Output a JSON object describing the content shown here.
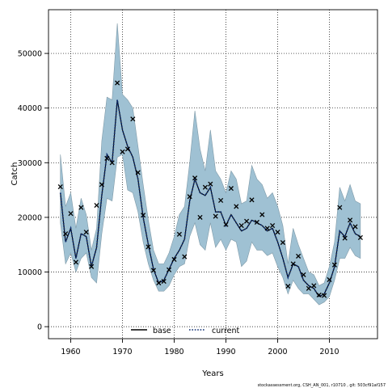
{
  "chart_data": {
    "type": "line",
    "xlabel": "Years",
    "ylabel": "Catch",
    "xlim": [
      1955.7,
      2019.3
    ],
    "ylim": [
      -2200,
      58000
    ],
    "x_ticks": [
      1960,
      1970,
      1980,
      1990,
      2000,
      2010
    ],
    "y_ticks": [
      0,
      10000,
      20000,
      30000,
      40000,
      50000
    ],
    "x_tick_labels": [
      "1960",
      "1970",
      "1980",
      "1990",
      "2000",
      "2010"
    ],
    "y_tick_labels": [
      "0",
      "10000",
      "20000",
      "30000",
      "40000",
      "50000"
    ],
    "grid": true,
    "legend_position": "bottom-center",
    "footer": "stockassessment.org, CSH_AN_001, r10710 , git: 503cf91af157",
    "colors": {
      "band": "#9fc1d3",
      "band_edge": "#7f9aa8",
      "current": "#0a2a70",
      "base": "#000000",
      "observed": "#000000"
    },
    "x": [
      1958,
      1959,
      1960,
      1961,
      1962,
      1963,
      1964,
      1965,
      1966,
      1967,
      1968,
      1969,
      1970,
      1971,
      1972,
      1973,
      1974,
      1975,
      1976,
      1977,
      1978,
      1979,
      1980,
      1981,
      1982,
      1983,
      1984,
      1985,
      1986,
      1987,
      1988,
      1989,
      1990,
      1991,
      1992,
      1993,
      1994,
      1995,
      1996,
      1997,
      1998,
      1999,
      2000,
      2001,
      2002,
      2003,
      2004,
      2005,
      2006,
      2007,
      2008,
      2009,
      2010,
      2011,
      2012,
      2013,
      2014,
      2015,
      2016
    ],
    "series": [
      {
        "name": "base",
        "style": "solid",
        "values": [
          24500,
          15500,
          18000,
          12500,
          17000,
          16500,
          11000,
          14500,
          24000,
          31500,
          30000,
          41500,
          36000,
          33000,
          31000,
          27000,
          20000,
          15000,
          10500,
          8000,
          8500,
          10500,
          12500,
          14000,
          16000,
          23000,
          27000,
          24500,
          24000,
          25500,
          21000,
          21000,
          18500,
          20500,
          19000,
          17500,
          18000,
          19500,
          19000,
          18500,
          17500,
          18000,
          15500,
          12500,
          9000,
          11500,
          11000,
          8500,
          7500,
          7000,
          5500,
          6000,
          8000,
          11000,
          17500,
          16500,
          19000,
          17000,
          16500
        ]
      },
      {
        "name": "current",
        "style": "dotted",
        "values": [
          24500,
          15500,
          18000,
          12500,
          17000,
          16500,
          11000,
          14500,
          24000,
          31500,
          30000,
          41500,
          36000,
          33000,
          31000,
          27000,
          20000,
          15000,
          10500,
          8000,
          8500,
          10500,
          12500,
          14000,
          16000,
          23000,
          27000,
          24500,
          24000,
          25500,
          21000,
          21000,
          18500,
          20500,
          19000,
          17500,
          18000,
          19500,
          19000,
          18500,
          17500,
          18000,
          15500,
          12500,
          9000,
          11500,
          11000,
          8500,
          7500,
          7000,
          5500,
          6000,
          8000,
          11000,
          17500,
          16500,
          19000,
          17000,
          16500
        ]
      }
    ],
    "confidence_band": {
      "upper": [
        31500,
        22000,
        24500,
        18000,
        23500,
        20500,
        14000,
        18000,
        34000,
        42000,
        41500,
        55500,
        42500,
        41500,
        40000,
        33000,
        26000,
        19500,
        14000,
        11500,
        11500,
        13500,
        16500,
        20500,
        22000,
        30000,
        39500,
        32500,
        28500,
        36000,
        28500,
        27000,
        24500,
        28500,
        27000,
        22500,
        23000,
        29500,
        27000,
        26000,
        23500,
        24500,
        22000,
        18500,
        11500,
        18000,
        15000,
        12500,
        10000,
        9500,
        7500,
        8000,
        11000,
        15500,
        25500,
        23000,
        26000,
        23000,
        22500
      ],
      "lower": [
        19000,
        11500,
        13500,
        10000,
        12500,
        13500,
        9000,
        8000,
        17000,
        23500,
        23000,
        31000,
        31500,
        25000,
        24500,
        21000,
        15500,
        11500,
        8500,
        6500,
        6500,
        7500,
        9500,
        11000,
        11500,
        16500,
        19000,
        15000,
        14000,
        19000,
        14500,
        16000,
        14000,
        16000,
        15500,
        11000,
        12000,
        15500,
        14000,
        14000,
        13000,
        13500,
        11000,
        9000,
        6000,
        8500,
        7000,
        6000,
        6000,
        5000,
        4000,
        4500,
        5500,
        8500,
        12500,
        12500,
        14500,
        13000,
        12500
      ]
    },
    "observed": {
      "name": "observed",
      "marker": "x",
      "values": [
        25600,
        17000,
        20700,
        11800,
        21800,
        17300,
        11000,
        22200,
        26000,
        30800,
        30000,
        44600,
        32000,
        32500,
        38000,
        28200,
        20400,
        14600,
        10300,
        8000,
        8300,
        10400,
        12300,
        16900,
        12800,
        23800,
        27200,
        20000,
        25500,
        26100,
        20200,
        23100,
        18700,
        25300,
        22000,
        18500,
        19300,
        23200,
        19100,
        20500,
        18000,
        18500,
        17300,
        15400,
        7400,
        11500,
        12900,
        9500,
        7000,
        7500,
        5800,
        5700,
        8600,
        11300,
        21800,
        16200,
        19500,
        18300,
        16300
      ]
    }
  }
}
